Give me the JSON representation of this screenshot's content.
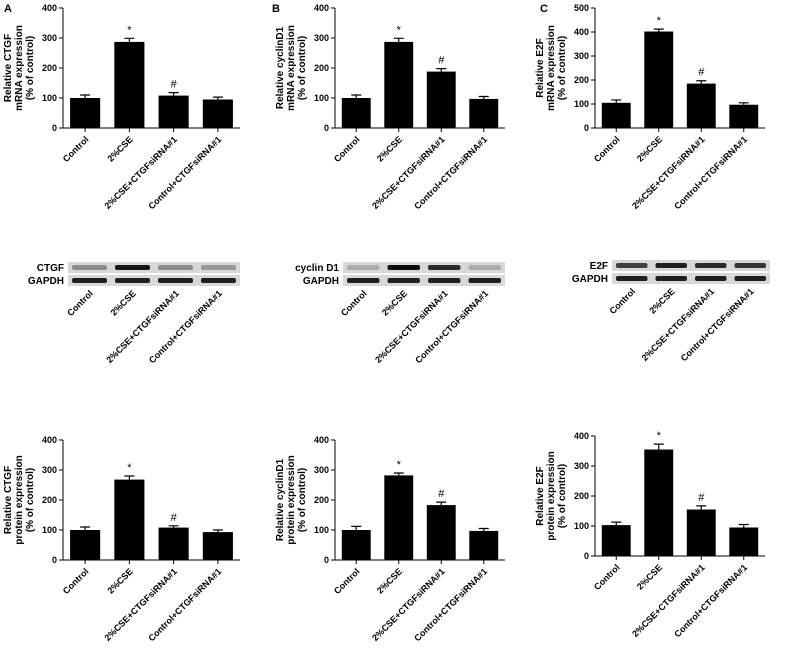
{
  "chart_data": [
    {
      "type": "bar",
      "panel": "A",
      "ylabel": [
        "Relative CTGF",
        "mRNA expression",
        "(% of control)"
      ],
      "categories": [
        "Control",
        "2%CSE",
        "2%CSE+CTGFsiRNA#1",
        "Control+CTGFsiRNA#1"
      ],
      "values": [
        100,
        287,
        108,
        95
      ],
      "errors": [
        10,
        12,
        10,
        8
      ],
      "markers": [
        null,
        "*",
        "#",
        null
      ],
      "color": "#000000",
      "ylim": [
        0,
        400
      ],
      "yticks": [
        0,
        100,
        200,
        300,
        400
      ]
    },
    {
      "type": "bar",
      "panel": "B",
      "ylabel": [
        "Relative cyclinD1",
        "mRNA expression",
        "(% of control)"
      ],
      "categories": [
        "Control",
        "2%CSE",
        "2%CSE+CTGFsiRNA#1",
        "Control+CTGFsiRNA#1"
      ],
      "values": [
        100,
        287,
        188,
        97
      ],
      "errors": [
        10,
        12,
        10,
        8
      ],
      "markers": [
        null,
        "*",
        "#",
        null
      ],
      "color": "#000000",
      "ylim": [
        0,
        400
      ],
      "yticks": [
        0,
        100,
        200,
        300,
        400
      ]
    },
    {
      "type": "bar",
      "panel": "C",
      "ylabel": [
        "Relative E2F",
        "mRNA expression",
        "(% of control)"
      ],
      "categories": [
        "Control",
        "2%CSE",
        "2%CSE+CTGFsiRNA#1",
        "Control+CTGFsiRNA#1"
      ],
      "values": [
        105,
        402,
        185,
        97
      ],
      "errors": [
        12,
        10,
        12,
        8
      ],
      "markers": [
        null,
        "*",
        "#",
        null
      ],
      "color": "#000000",
      "ylim": [
        0,
        500
      ],
      "yticks": [
        0,
        100,
        200,
        300,
        400,
        500
      ]
    },
    {
      "type": "bar",
      "ylabel": [
        "Relative CTGF",
        "protein expression",
        "(% of control)"
      ],
      "categories": [
        "Control",
        "2%CSE",
        "2%CSE+CTGFsiRNA#1",
        "Control+CTGFsiRNA#1"
      ],
      "values": [
        100,
        268,
        108,
        93
      ],
      "errors": [
        10,
        12,
        6,
        7
      ],
      "markers": [
        null,
        "*",
        "#",
        null
      ],
      "color": "#000000",
      "ylim": [
        0,
        400
      ],
      "yticks": [
        0,
        100,
        200,
        300,
        400
      ]
    },
    {
      "type": "bar",
      "ylabel": [
        "Relative cyclinD1",
        "protein expression",
        "(% of control)"
      ],
      "categories": [
        "Control",
        "2%CSE",
        "2%CSE+CTGFsiRNA#1",
        "Control+CTGFsiRNA#1"
      ],
      "values": [
        100,
        282,
        183,
        97
      ],
      "errors": [
        12,
        8,
        10,
        8
      ],
      "markers": [
        null,
        "*",
        "#",
        null
      ],
      "color": "#000000",
      "ylim": [
        0,
        400
      ],
      "yticks": [
        0,
        100,
        200,
        300,
        400
      ]
    },
    {
      "type": "bar",
      "ylabel": [
        "Relative E2F",
        "protein expression",
        "(% of control)"
      ],
      "categories": [
        "Control",
        "2%CSE",
        "2%CSE+CTGFsiRNA#1",
        "Control+CTGFsiRNA#1"
      ],
      "values": [
        103,
        355,
        155,
        95
      ],
      "errors": [
        10,
        18,
        12,
        10
      ],
      "markers": [
        null,
        "*",
        "#",
        null
      ],
      "color": "#000000",
      "ylim": [
        0,
        400
      ],
      "yticks": [
        0,
        100,
        200,
        300,
        400
      ]
    }
  ],
  "blots": [
    {
      "labels": [
        "CTGF",
        "GAPDH"
      ],
      "lanes": [
        "Control",
        "2%CSE",
        "2%CSE+CTGFsiRNA#1",
        "Control+CTGFsiRNA#1"
      ]
    },
    {
      "labels": [
        "cyclin D1",
        "GAPDH"
      ],
      "lanes": [
        "Control",
        "2%CSE",
        "2%CSE+CTGFsiRNA#1",
        "Control+CTGFsiRNA#1"
      ]
    },
    {
      "labels": [
        "E2F",
        "GAPDH"
      ],
      "lanes": [
        "Control",
        "2%CSE",
        "2%CSE+CTGFsiRNA#1",
        "Control+CTGFsiRNA#1"
      ]
    }
  ]
}
